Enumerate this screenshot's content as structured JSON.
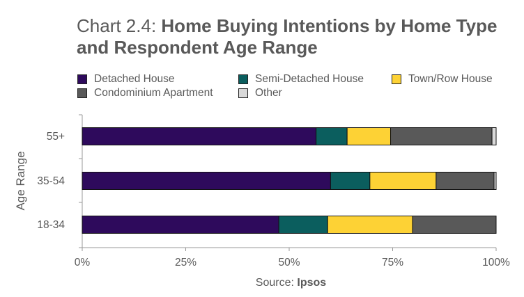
{
  "title": {
    "prefix": "Chart 2.4: ",
    "main": "Home Buying Intentions by Home Type and Respondent Age Range"
  },
  "source": {
    "label": "Source: ",
    "name": "Ipsos"
  },
  "chart_data": {
    "type": "bar",
    "orientation": "horizontal",
    "stacked": "percent",
    "categories": [
      "55+",
      "35-54",
      "18-34"
    ],
    "ylabel": "Age Range",
    "xlabel": "",
    "xlim": [
      0,
      100
    ],
    "xticks": [
      "0%",
      "25%",
      "50%",
      "75%",
      "100%"
    ],
    "legend_position": "top",
    "grid": false,
    "series": [
      {
        "name": "Detached House",
        "color": "#2e0a5c",
        "values": [
          56.5,
          60,
          47.5
        ]
      },
      {
        "name": "Semi-Detached House",
        "color": "#0b5e5e",
        "values": [
          7.5,
          9.5,
          11.8
        ]
      },
      {
        "name": "Town/Row House",
        "color": "#fdd235",
        "values": [
          10.5,
          16,
          20.5
        ]
      },
      {
        "name": "Condominium Apartment",
        "color": "#595959",
        "values": [
          24.5,
          14,
          20.2
        ]
      },
      {
        "name": "Other",
        "color": "#d9d9d9",
        "values": [
          1,
          0.5,
          0
        ]
      }
    ]
  }
}
